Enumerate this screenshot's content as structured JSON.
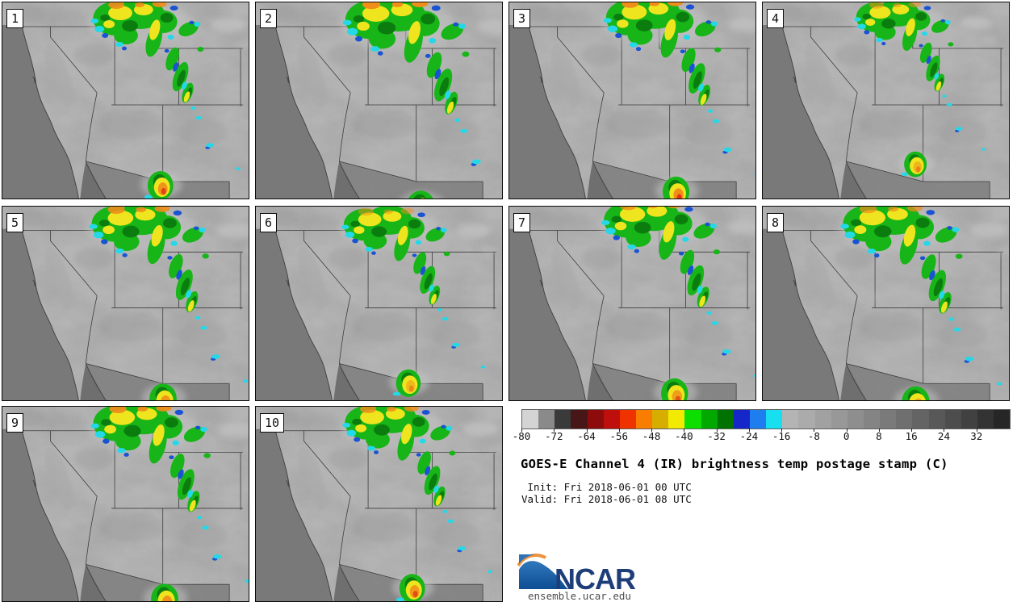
{
  "title": "GOES-E Channel 4 (IR) brightness temp postage stamp (C)",
  "init_line": " Init: Fri 2018-06-01 00 UTC",
  "valid_line": "Valid: Fri 2018-06-01 08 UTC",
  "panels": [
    {
      "label": "1"
    },
    {
      "label": "2"
    },
    {
      "label": "3"
    },
    {
      "label": "4"
    },
    {
      "label": "5"
    },
    {
      "label": "6"
    },
    {
      "label": "7"
    },
    {
      "label": "8"
    },
    {
      "label": "9"
    },
    {
      "label": "10"
    }
  ],
  "colorbar": {
    "units": "C",
    "min": -80,
    "max": 40,
    "segment_step": 4,
    "tick_labels": [
      "-80",
      "-72",
      "-64",
      "-56",
      "-48",
      "-40",
      "-32",
      "-24",
      "-16",
      "-8",
      "0",
      "8",
      "16",
      "24",
      "32"
    ],
    "segment_colors": [
      "#d4d4d4",
      "#8a8a8a",
      "#3a3a3a",
      "#471717",
      "#8e0b0b",
      "#bf0f0c",
      "#ee3300",
      "#f97d00",
      "#d6ae00",
      "#f2ea00",
      "#0cde00",
      "#00a800",
      "#007200",
      "#1527c8",
      "#1e7ef0",
      "#17dff0",
      "#b4b4b4",
      "#ababab",
      "#a1a1a1",
      "#989898",
      "#8e8e8e",
      "#848484",
      "#7a7a7a",
      "#6f6f6f",
      "#646464",
      "#585858",
      "#4d4d4d",
      "#414141",
      "#333333",
      "#262626"
    ]
  },
  "logo": {
    "wordmark": "NCAR",
    "site_url": "ensemble.ucar.edu",
    "navy": "#1d3e78",
    "blue": "#1f62a8",
    "orange": "#f0923c"
  }
}
